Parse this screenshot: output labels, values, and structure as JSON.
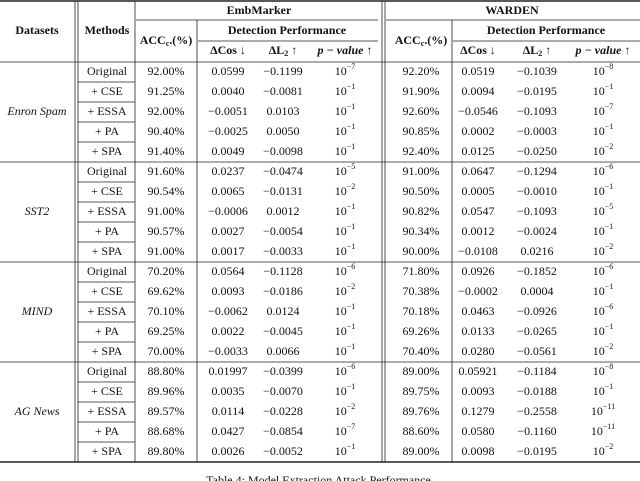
{
  "table": {
    "header": {
      "datasets": "Datasets",
      "methods": "Methods",
      "groups": [
        "EmbMarker",
        "WARDEN"
      ],
      "acc": {
        "main": "ACC",
        "sub": "c",
        "rest": ".(%)"
      },
      "detection": "Detection Performance",
      "cos": {
        "main": "ΔCos",
        "rest": " ↓"
      },
      "l2": {
        "main": "ΔL",
        "sub": "2",
        "rest": " ↑"
      },
      "p": {
        "main": "p − value",
        "rest": " ↑"
      }
    },
    "sections": [
      {
        "dataset": "Enron Spam",
        "rows": [
          [
            "Original",
            "92.00%",
            "0.0599",
            "−0.1199",
            [
              "10",
              "−7"
            ],
            "92.20%",
            "0.0519",
            "−0.1039",
            [
              "10",
              "−8"
            ]
          ],
          [
            "+ CSE",
            "91.25%",
            "0.0040",
            "−0.0081",
            [
              "10",
              "−1"
            ],
            "91.90%",
            "0.0094",
            "−0.0195",
            [
              "10",
              "−1"
            ]
          ],
          [
            "+ ESSA",
            "92.00%",
            "−0.0051",
            "0.0103",
            [
              "10",
              "−1"
            ],
            "92.60%",
            "−0.0546",
            "−0.1093",
            [
              "10",
              "−7"
            ]
          ],
          [
            "+ PA",
            "90.40%",
            "−0.0025",
            "0.0050",
            [
              "10",
              "−1"
            ],
            "90.85%",
            "0.0002",
            "−0.0003",
            [
              "10",
              "−1"
            ]
          ],
          [
            "+ SPA",
            "91.40%",
            "0.0049",
            "−0.0098",
            [
              "10",
              "−1"
            ],
            "92.40%",
            "0.0125",
            "−0.0250",
            [
              "10",
              "−2"
            ]
          ]
        ]
      },
      {
        "dataset": "SST2",
        "rows": [
          [
            "Original",
            "91.60%",
            "0.0237",
            "−0.0474",
            [
              "10",
              "−5"
            ],
            "91.00%",
            "0.0647",
            "−0.1294",
            [
              "10",
              "−6"
            ]
          ],
          [
            "+ CSE",
            "90.54%",
            "0.0065",
            "−0.0131",
            [
              "10",
              "−2"
            ],
            "90.50%",
            "0.0005",
            "−0.0010",
            [
              "10",
              "−1"
            ]
          ],
          [
            "+ ESSA",
            "91.00%",
            "−0.0006",
            "0.0012",
            [
              "10",
              "−1"
            ],
            "90.82%",
            "0.0547",
            "−0.1093",
            [
              "10",
              "−5"
            ]
          ],
          [
            "+ PA",
            "90.57%",
            "0.0027",
            "−0.0054",
            [
              "10",
              "−1"
            ],
            "90.34%",
            "0.0012",
            "−0.0024",
            [
              "10",
              "−1"
            ]
          ],
          [
            "+ SPA",
            "91.00%",
            "0.0017",
            "−0.0033",
            [
              "10",
              "−1"
            ],
            "90.00%",
            "−0.0108",
            "0.0216",
            [
              "10",
              "−2"
            ]
          ]
        ]
      },
      {
        "dataset": "MIND",
        "rows": [
          [
            "Original",
            "70.20%",
            "0.0564",
            "−0.1128",
            [
              "10",
              "−6"
            ],
            "71.80%",
            "0.0926",
            "−0.1852",
            [
              "10",
              "−6"
            ]
          ],
          [
            "+ CSE",
            "69.62%",
            "0.0093",
            "−0.0186",
            [
              "10",
              "−2"
            ],
            "70.38%",
            "−0.0002",
            "0.0004",
            [
              "10",
              "−1"
            ]
          ],
          [
            "+ ESSA",
            "70.10%",
            "−0.0062",
            "0.0124",
            [
              "10",
              "−1"
            ],
            "70.18%",
            "0.0463",
            "−0.0926",
            [
              "10",
              "−6"
            ]
          ],
          [
            "+ PA",
            "69.25%",
            "0.0022",
            "−0.0045",
            [
              "10",
              "−1"
            ],
            "69.26%",
            "0.0133",
            "−0.0265",
            [
              "10",
              "−1"
            ]
          ],
          [
            "+ SPA",
            "70.00%",
            "−0.0033",
            "0.0066",
            [
              "10",
              "−1"
            ],
            "70.40%",
            "0.0280",
            "−0.0561",
            [
              "10",
              "−2"
            ]
          ]
        ]
      },
      {
        "dataset": "AG News",
        "rows": [
          [
            "Original",
            "88.80%",
            "0.01997",
            "−0.0399",
            [
              "10",
              "−6"
            ],
            "89.00%",
            "0.05921",
            "−0.1184",
            [
              "10",
              "−8"
            ]
          ],
          [
            "+ CSE",
            "89.96%",
            "0.0035",
            "−0.0070",
            [
              "10",
              "−1"
            ],
            "89.75%",
            "0.0093",
            "−0.0188",
            [
              "10",
              "−1"
            ]
          ],
          [
            "+ ESSA",
            "89.57%",
            "0.0114",
            "−0.0228",
            [
              "10",
              "−2"
            ],
            "89.76%",
            "0.1279",
            "−0.2558",
            [
              "10",
              "−11"
            ]
          ],
          [
            "+ PA",
            "88.68%",
            "0.0427",
            "−0.0854",
            [
              "10",
              "−7"
            ],
            "88.60%",
            "0.0580",
            "−0.1160",
            [
              "10",
              "−11"
            ]
          ],
          [
            "+ SPA",
            "89.80%",
            "0.0026",
            "−0.0052",
            [
              "10",
              "−1"
            ],
            "89.00%",
            "0.0098",
            "−0.0195",
            [
              "10",
              "−2"
            ]
          ]
        ]
      }
    ],
    "caption": "Table 4: Model Extraction Attack Performance."
  }
}
